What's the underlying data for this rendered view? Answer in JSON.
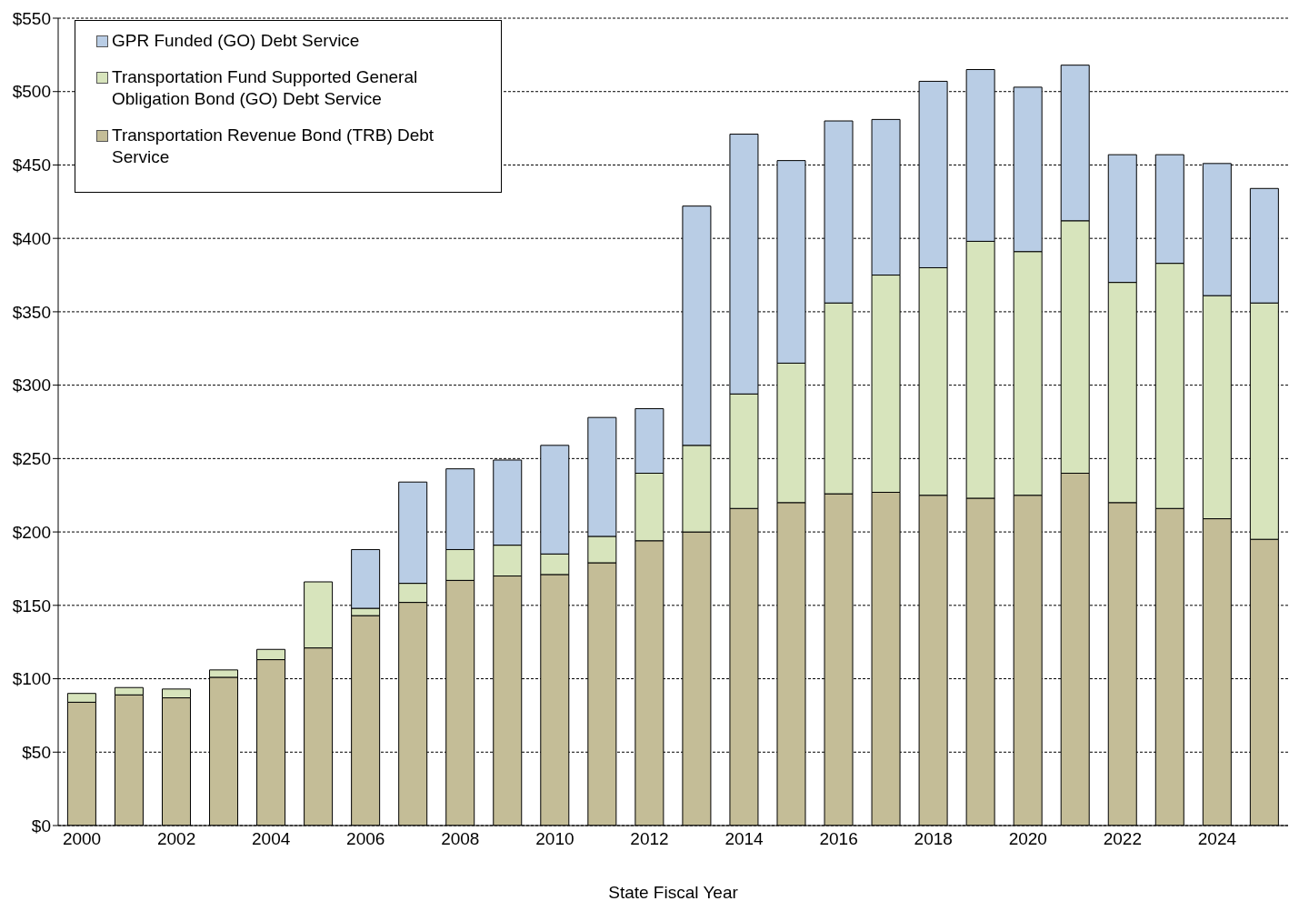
{
  "chart_data": {
    "type": "bar",
    "stacked": true,
    "xlabel": "State Fiscal Year",
    "categories": [
      "2000",
      null,
      "2002",
      null,
      "2004",
      null,
      "2006",
      null,
      "2008",
      null,
      "2010",
      null,
      "2012",
      null,
      "2014",
      null,
      "2016",
      null,
      "2018",
      null,
      "2020",
      null,
      "2022",
      null,
      "2024",
      null
    ],
    "series": [
      {
        "name": "Transportation Revenue Bond (TRB) Debt Service",
        "color": "#c4bd97",
        "values": [
          84,
          89,
          87,
          101,
          113,
          121,
          143,
          152,
          167,
          170,
          171,
          179,
          194,
          200,
          216,
          220,
          226,
          227,
          225,
          223,
          225,
          240,
          220,
          216,
          209,
          195
        ]
      },
      {
        "name": "Transportation Fund Supported General Obligation Bond (GO) Debt Service",
        "color": "#d7e4bc",
        "values": [
          6,
          5,
          6,
          5,
          7,
          45,
          5,
          13,
          21,
          21,
          14,
          18,
          46,
          59,
          78,
          95,
          130,
          148,
          155,
          175,
          166,
          172,
          150,
          167,
          152,
          161
        ]
      },
      {
        "name": "GPR Funded (GO) Debt Service",
        "color": "#b9cde5",
        "values": [
          0,
          0,
          0,
          0,
          0,
          0,
          40,
          69,
          55,
          58,
          74,
          81,
          44,
          163,
          177,
          138,
          124,
          106,
          127,
          117,
          112,
          106,
          87,
          74,
          90,
          78
        ]
      }
    ],
    "ylim": [
      0,
      550
    ],
    "yticks": [
      {
        "value": 0,
        "label": "$0"
      },
      {
        "value": 50,
        "label": "$50"
      },
      {
        "value": 100,
        "label": "$100"
      },
      {
        "value": 150,
        "label": "$150"
      },
      {
        "value": 200,
        "label": "$200"
      },
      {
        "value": 250,
        "label": "$250"
      },
      {
        "value": 300,
        "label": "$300"
      },
      {
        "value": 350,
        "label": "$350"
      },
      {
        "value": 400,
        "label": "$400"
      },
      {
        "value": 450,
        "label": "$450"
      },
      {
        "value": 500,
        "label": "$500"
      },
      {
        "value": 550,
        "label": "$550"
      }
    ],
    "grid": "y",
    "legend": "top left"
  }
}
